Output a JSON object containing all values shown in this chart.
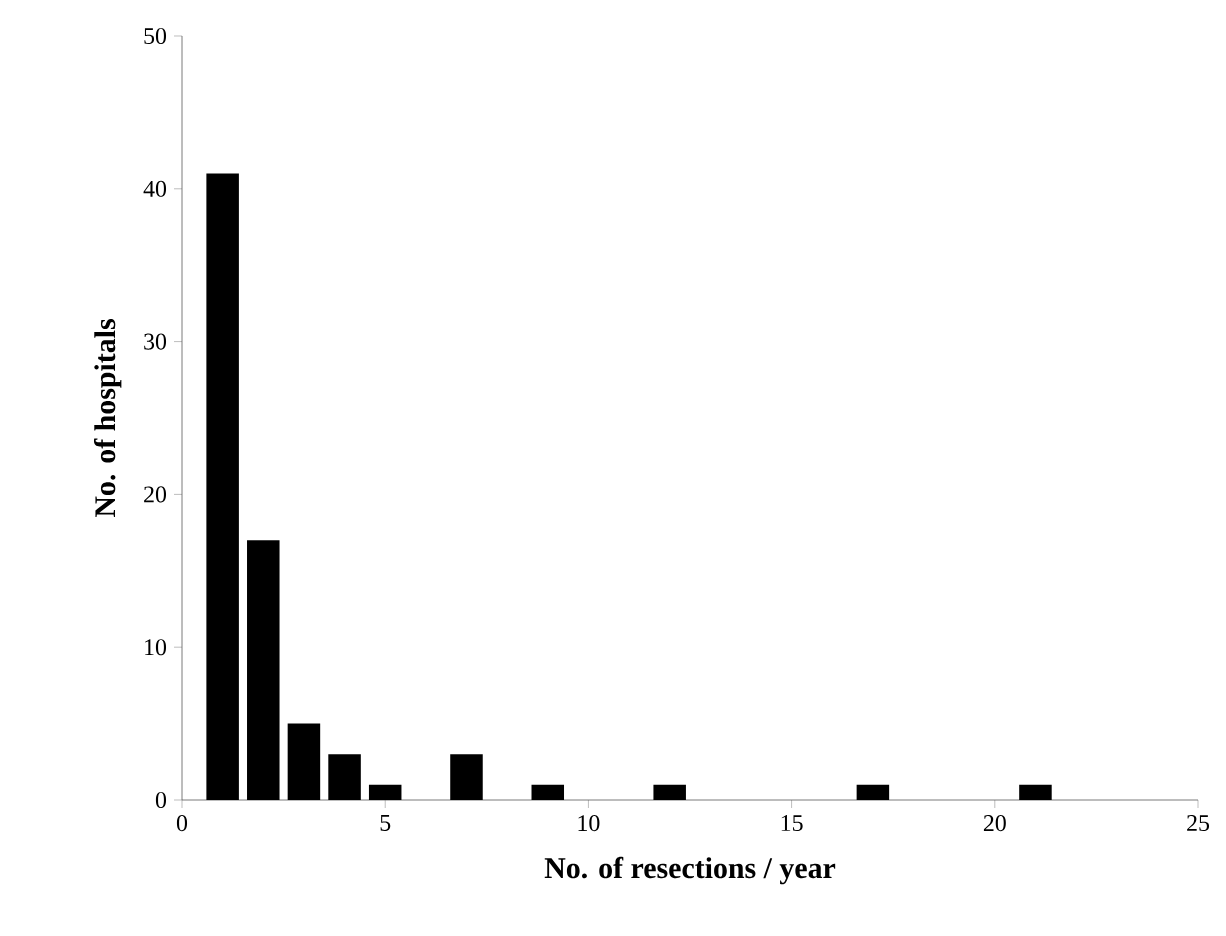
{
  "chart_data": {
    "type": "bar",
    "xlabel": "No. of resections / year",
    "ylabel": "No. of hospitals",
    "x": [
      1,
      2,
      3,
      4,
      5,
      7,
      9,
      12,
      17,
      21
    ],
    "values": [
      41,
      17,
      5,
      3,
      1,
      3,
      1,
      1,
      1,
      1
    ],
    "color": "#000000",
    "xlim": [
      0,
      25
    ],
    "xticks": [
      0,
      5,
      10,
      15,
      20,
      25
    ],
    "ylim": [
      0,
      50
    ],
    "yticks": [
      0,
      10,
      20,
      30,
      40,
      50
    ]
  }
}
